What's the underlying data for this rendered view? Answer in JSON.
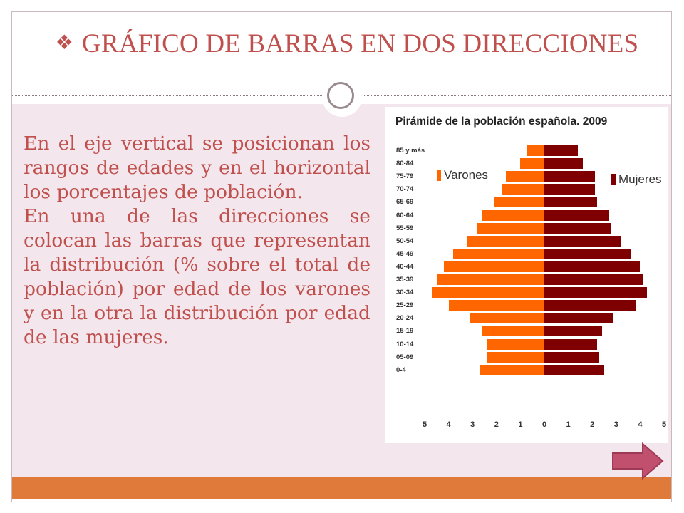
{
  "slide": {
    "title_bullet": "❖",
    "title": "GRÁFICO DE BARRAS EN DOS DIRECCIONES",
    "paragraphs": [
      "En el eje vertical se posicionan los rangos de edades y en el horizontal los porcentajes de población.",
      "En una de las direcciones se colocan las barras que representan la distribución (% sobre el total de población) por edad de los varones y en la otra la distribución por edad de las mujeres."
    ]
  },
  "colors": {
    "title": "#c0504d",
    "background": "#f3e6ec",
    "bottom_bar": "#e07a3a",
    "male": "#ff6600",
    "female": "#7f0000",
    "next_arrow": "#c0506e"
  },
  "icons": {
    "title_bullet": "diamond-bullet-icon",
    "next": "next-arrow-icon",
    "ring": "circle-ring-icon"
  },
  "chart_data": {
    "type": "bar",
    "orientation": "horizontal",
    "title": "Pirámide de la población española. 2009",
    "categories": [
      "85 y más",
      "80-84",
      "75-79",
      "70-74",
      "65-69",
      "60-64",
      "55-59",
      "50-54",
      "45-49",
      "40-44",
      "35-39",
      "30-34",
      "25-29",
      "20-24",
      "15-19",
      "10-14",
      "05-09",
      "0-4"
    ],
    "series": [
      {
        "name": "Varones",
        "side": "left",
        "values": [
          0.7,
          1.0,
          1.6,
          1.8,
          2.1,
          2.6,
          2.8,
          3.2,
          3.8,
          4.2,
          4.5,
          4.7,
          4.0,
          3.1,
          2.6,
          2.4,
          2.4,
          2.7
        ]
      },
      {
        "name": "Mujeres",
        "side": "right",
        "values": [
          1.4,
          1.6,
          2.1,
          2.1,
          2.2,
          2.7,
          2.8,
          3.2,
          3.6,
          4.0,
          4.1,
          4.3,
          3.8,
          2.9,
          2.4,
          2.2,
          2.3,
          2.5
        ]
      }
    ],
    "x_ticks": [
      "5",
      "4",
      "3",
      "2",
      "1",
      "0",
      "1",
      "2",
      "3",
      "4",
      "5"
    ],
    "xlim": [
      -5,
      5
    ],
    "legend": "inside, Varones top-left, Mujeres top-right"
  }
}
